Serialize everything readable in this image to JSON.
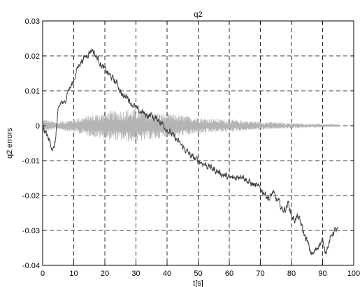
{
  "chart_data": {
    "type": "line",
    "title": "q2",
    "xlabel": "t[s]",
    "ylabel": "q2 errors",
    "xlim": [
      0,
      100
    ],
    "ylim": [
      -0.04,
      0.03
    ],
    "grid": true,
    "x_ticks": [
      0,
      10,
      20,
      30,
      40,
      50,
      60,
      70,
      80,
      90,
      100
    ],
    "y_ticks": [
      -0.04,
      -0.03,
      -0.02,
      -0.01,
      0,
      0.01,
      0.02,
      0.03
    ],
    "x_tick_labels": [
      "0",
      "10",
      "20",
      "30",
      "40",
      "50",
      "60",
      "70",
      "80",
      "90",
      "100"
    ],
    "y_tick_labels": [
      "-0.04",
      "-0.03",
      "-0.02",
      "-0.01",
      "0",
      "0.01",
      "0.02",
      "0.03"
    ],
    "series": [
      {
        "color": "#404040",
        "style": "noisy-line",
        "x": [
          0,
          1,
          2,
          3,
          3.5,
          4,
          4.5,
          5,
          6,
          7,
          8,
          9,
          10,
          11,
          12,
          13,
          14,
          15,
          16,
          17,
          18,
          19,
          20,
          21,
          22,
          23,
          24,
          25,
          26,
          27,
          28,
          29,
          30,
          31,
          32,
          33,
          34,
          35,
          36,
          37,
          38,
          39,
          40,
          41,
          42,
          44,
          46,
          48,
          50,
          52,
          54,
          56,
          58,
          60,
          62,
          64,
          66,
          68,
          70,
          71,
          72,
          73,
          74,
          75,
          76,
          77,
          78,
          79,
          80,
          81,
          82,
          83,
          84,
          85,
          86,
          87,
          88,
          89,
          90,
          91,
          92,
          93,
          94,
          95
        ],
        "y": [
          -0.001,
          -0.002,
          -0.004,
          -0.006,
          -0.007,
          -0.005,
          0.0,
          0.004,
          0.007,
          0.006,
          0.01,
          0.011,
          0.013,
          0.016,
          0.018,
          0.019,
          0.02,
          0.021,
          0.022,
          0.02,
          0.019,
          0.017,
          0.016,
          0.015,
          0.014,
          0.013,
          0.012,
          0.01,
          0.008,
          0.009,
          0.007,
          0.006,
          0.005,
          0.004,
          0.004,
          0.003,
          0.003,
          0.003,
          0.002,
          0.002,
          0.001,
          0.0,
          -0.001,
          -0.002,
          -0.003,
          -0.005,
          -0.007,
          -0.009,
          -0.01,
          -0.011,
          -0.012,
          -0.013,
          -0.014,
          -0.015,
          -0.015,
          -0.014,
          -0.016,
          -0.017,
          -0.018,
          -0.019,
          -0.02,
          -0.021,
          -0.019,
          -0.021,
          -0.022,
          -0.024,
          -0.024,
          -0.022,
          -0.026,
          -0.027,
          -0.026,
          -0.028,
          -0.031,
          -0.033,
          -0.036,
          -0.037,
          -0.035,
          -0.034,
          -0.033,
          -0.036,
          -0.034,
          -0.031,
          -0.03,
          -0.03
        ]
      },
      {
        "color": "#b4b4b4",
        "style": "oscillation-envelope",
        "x": [
          0,
          5,
          10,
          15,
          20,
          25,
          30,
          35,
          40,
          45,
          50,
          55,
          60,
          65,
          70,
          75,
          80,
          85,
          90,
          95
        ],
        "amplitude": [
          0.002,
          0.001,
          0.002,
          0.003,
          0.004,
          0.0045,
          0.005,
          0.004,
          0.0035,
          0.003,
          0.0025,
          0.002,
          0.0018,
          0.0015,
          0.0012,
          0.001,
          0.0008,
          0.0006,
          0.0005,
          0.0004
        ]
      }
    ]
  }
}
